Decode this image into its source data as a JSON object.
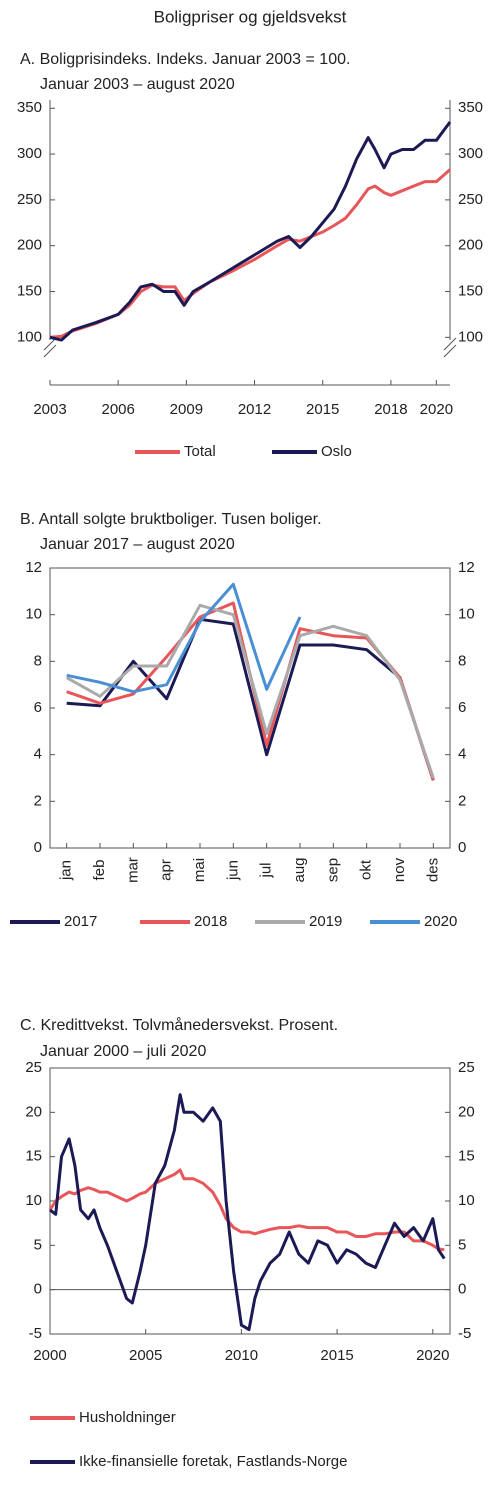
{
  "title": "Boligpriser og gjeldsvekst",
  "chart_data": [
    {
      "type": "line",
      "title": "A.  Boligprisindeks. Indeks. Januar 2003 = 100.",
      "subtitle": "Januar 2003 – august 2020",
      "x": [
        2003,
        2003.5,
        2004,
        2005,
        2006,
        2006.5,
        2007,
        2007.5,
        2008,
        2008.5,
        2008.9,
        2009.3,
        2010,
        2011,
        2012,
        2013,
        2013.5,
        2014,
        2014.5,
        2015,
        2015.5,
        2016,
        2016.5,
        2017,
        2017.3,
        2017.7,
        2018,
        2018.5,
        2019,
        2019.5,
        2020,
        2020.6
      ],
      "series": [
        {
          "name": "Total",
          "color": "#e8565a",
          "values": [
            100,
            101,
            107,
            115,
            125,
            135,
            150,
            157,
            155,
            155,
            140,
            148,
            160,
            172,
            185,
            200,
            207,
            205,
            210,
            215,
            222,
            230,
            245,
            262,
            265,
            258,
            255,
            260,
            265,
            270,
            270,
            283
          ]
        },
        {
          "name": "Oslo",
          "color": "#1b1a55",
          "values": [
            100,
            97,
            108,
            116,
            125,
            138,
            155,
            158,
            150,
            150,
            135,
            150,
            160,
            175,
            190,
            205,
            210,
            198,
            210,
            225,
            240,
            265,
            295,
            318,
            305,
            285,
            300,
            305,
            305,
            315,
            315,
            335
          ]
        }
      ],
      "xlim": [
        2003,
        2020.6
      ],
      "xticks": [
        2003,
        2006,
        2009,
        2012,
        2015,
        2018,
        2020
      ],
      "ylim": [
        48,
        359
      ],
      "yticks": [
        100,
        150,
        200,
        250,
        300,
        350
      ],
      "grid": false,
      "legend": "bottom"
    },
    {
      "type": "line",
      "title": "B.  Antall solgte bruktboliger. Tusen boliger.",
      "subtitle": "Januar 2017 – august 2020",
      "categories": [
        "jan",
        "feb",
        "mar",
        "apr",
        "mai",
        "jun",
        "jul",
        "aug",
        "sep",
        "okt",
        "nov",
        "des"
      ],
      "series": [
        {
          "name": "2017",
          "color": "#1b1a55",
          "values": [
            6.2,
            6.1,
            8.0,
            6.4,
            9.8,
            9.6,
            4.0,
            8.7,
            8.7,
            8.5,
            7.3,
            2.9
          ]
        },
        {
          "name": "2018",
          "color": "#e8565a",
          "values": [
            6.7,
            6.2,
            6.6,
            8.2,
            9.9,
            10.5,
            4.4,
            9.4,
            9.1,
            9.0,
            7.3,
            2.9
          ]
        },
        {
          "name": "2019",
          "color": "#aaaaaa",
          "values": [
            7.3,
            6.5,
            7.8,
            7.8,
            10.4,
            10.0,
            4.9,
            9.1,
            9.5,
            9.1,
            7.2,
            3.0
          ]
        },
        {
          "name": "2020",
          "color": "#4a8fd4",
          "values": [
            7.4,
            7.1,
            6.7,
            7.0,
            9.7,
            11.3,
            6.8,
            9.9,
            null,
            null,
            null,
            null
          ]
        }
      ],
      "ylim": [
        0,
        12
      ],
      "yticks": [
        0,
        2,
        4,
        6,
        8,
        10,
        12
      ],
      "grid": false,
      "legend": "bottom"
    },
    {
      "type": "line",
      "title": "C.  Kredittvekst. Tolvmånedersvekst. Prosent.",
      "subtitle": "Januar 2000 – juli 2020",
      "x": [
        2000,
        2000.3,
        2000.6,
        2001,
        2001.3,
        2001.6,
        2002,
        2002.3,
        2002.6,
        2003,
        2003.5,
        2004,
        2004.3,
        2004.7,
        2005,
        2005.5,
        2006,
        2006.5,
        2006.8,
        2007,
        2007.5,
        2008,
        2008.5,
        2008.9,
        2009.2,
        2009.6,
        2010,
        2010.4,
        2010.7,
        2011,
        2011.5,
        2012,
        2012.5,
        2013,
        2013.5,
        2014,
        2014.5,
        2015,
        2015.5,
        2016,
        2016.5,
        2017,
        2017.5,
        2018,
        2018.5,
        2019,
        2019.5,
        2020,
        2020.3,
        2020.6
      ],
      "series": [
        {
          "name": "Husholdninger",
          "color": "#e8565a",
          "values": [
            9,
            10,
            10.5,
            11,
            10.8,
            11.2,
            11.5,
            11.3,
            11,
            11,
            10.5,
            10,
            10.3,
            10.8,
            11,
            12,
            12.5,
            13,
            13.5,
            12.5,
            12.5,
            12,
            11,
            9.5,
            8,
            7,
            6.5,
            6.5,
            6.3,
            6.5,
            6.8,
            7,
            7,
            7.2,
            7,
            7,
            7,
            6.5,
            6.5,
            6,
            6,
            6.3,
            6.3,
            6.5,
            6.5,
            5.5,
            5.5,
            5,
            4.6,
            4.5
          ]
        },
        {
          "name": "Ikke-finansielle foretak, Fastlands-Norge",
          "color": "#1b1a55",
          "values": [
            9,
            8.5,
            15,
            17,
            14,
            9,
            8,
            9,
            7,
            5,
            2,
            -1,
            -1.5,
            2,
            5,
            12,
            14,
            18,
            22,
            20,
            20,
            19,
            20.5,
            19,
            10,
            2,
            -4,
            -4.5,
            -1,
            1,
            3,
            4,
            6.5,
            4,
            3,
            5.5,
            5,
            3,
            4.5,
            4,
            3,
            2.5,
            5,
            7.5,
            6,
            7,
            5.5,
            8,
            4.5,
            3.5
          ]
        }
      ],
      "xlim": [
        2000,
        2020.9
      ],
      "xticks": [
        2000,
        2005,
        2010,
        2015,
        2020
      ],
      "ylim": [
        -5,
        25
      ],
      "yticks": [
        -5,
        0,
        5,
        10,
        15,
        20,
        25
      ],
      "grid": false,
      "legend": "bottom"
    }
  ]
}
